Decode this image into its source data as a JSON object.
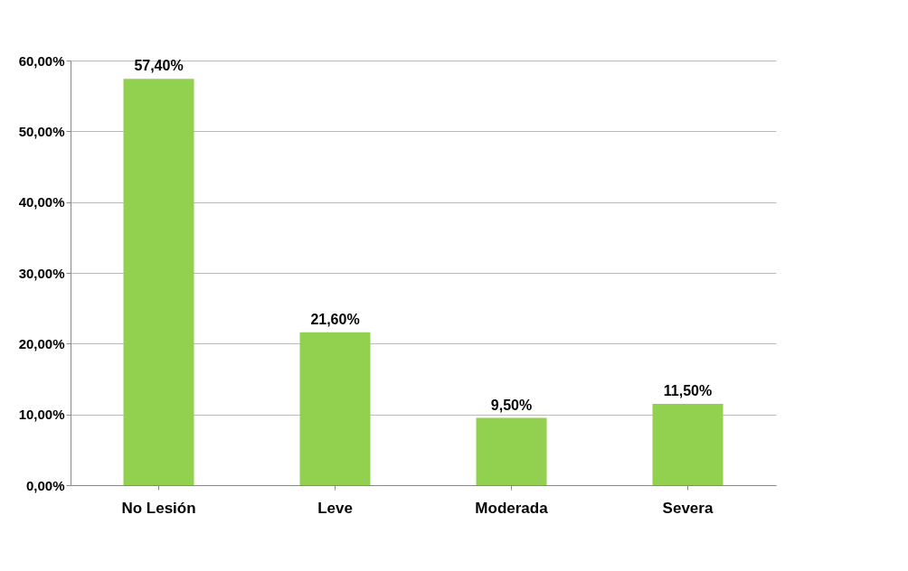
{
  "chart_data": {
    "type": "bar",
    "categories": [
      "No Lesión",
      "Leve",
      "Moderada",
      "Severa"
    ],
    "values": [
      57.4,
      21.6,
      9.5,
      11.5
    ],
    "value_labels": [
      "57,40%",
      "21,60%",
      "9,50%",
      "11,50%"
    ],
    "color": "#92d050",
    "ylim": [
      0,
      60
    ],
    "yticks": [
      {
        "value": 0,
        "label": "0,00%"
      },
      {
        "value": 10,
        "label": "10,00%"
      },
      {
        "value": 20,
        "label": "20,00%"
      },
      {
        "value": 30,
        "label": "30,00%"
      },
      {
        "value": 40,
        "label": "40,00%"
      },
      {
        "value": 50,
        "label": "50,00%"
      },
      {
        "value": 60,
        "label": "60,00%"
      }
    ],
    "grid": "y"
  }
}
